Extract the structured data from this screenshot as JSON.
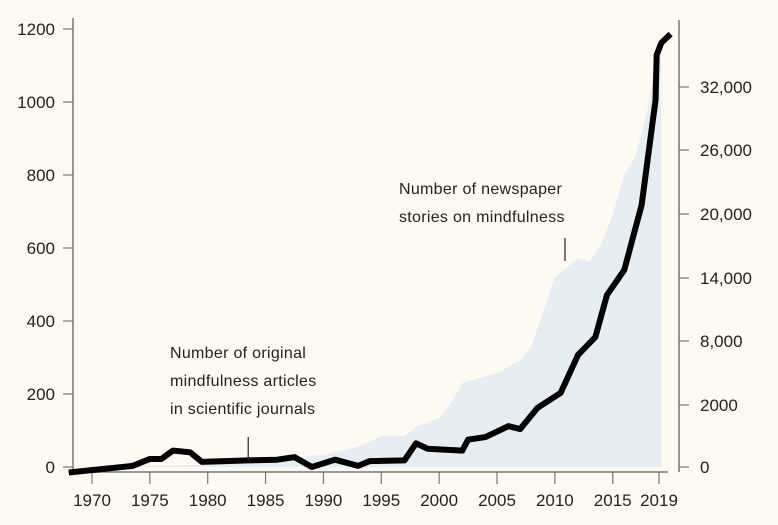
{
  "chart_data": {
    "type": "line",
    "title": "",
    "xlabel": "",
    "ylabel": "",
    "xlim": [
      1968,
      2020
    ],
    "ylim_left": [
      0,
      1200
    ],
    "x_ticks": [
      1970,
      1975,
      1980,
      1985,
      1990,
      1995,
      2000,
      2005,
      2010,
      2015,
      2019
    ],
    "left_ticks": [
      0,
      200,
      400,
      600,
      800,
      1000,
      1200
    ],
    "right_ticks": [
      {
        "value": 0,
        "label": "0"
      },
      {
        "value": 2000,
        "label": "2000"
      },
      {
        "value": 8000,
        "label": "8,000"
      },
      {
        "value": 14000,
        "label": "14,000"
      },
      {
        "value": 20000,
        "label": "20,000"
      },
      {
        "value": 26000,
        "label": "26,000"
      },
      {
        "value": 32000,
        "label": "32,000"
      }
    ],
    "grid": false,
    "colors": {
      "background": "#fdfaf2",
      "line": "#000000",
      "area": "#e6edf3",
      "axis": "#777777"
    },
    "series": [
      {
        "name": "Number of original mindfulness articles in scientific journals",
        "axis": "left",
        "style": "line",
        "x": [
          1968,
          1973.5,
          1975,
          1976,
          1977,
          1978.5,
          1979.5,
          1983.5,
          1986,
          1987.5,
          1989,
          1991,
          1993,
          1994,
          1997,
          1998,
          1999,
          2002,
          2002.5,
          2004,
          2006,
          2007,
          2008.5,
          2010.5,
          2012,
          2013.5,
          2014.5,
          2016,
          2017.5,
          2018.7,
          2018.8,
          2019.2,
          2020
        ],
        "values": [
          -15,
          3,
          22,
          22,
          45,
          40,
          14,
          18,
          20,
          27,
          0,
          20,
          3,
          16,
          18,
          65,
          50,
          45,
          75,
          82,
          112,
          104,
          162,
          203,
          307,
          356,
          471,
          540,
          718,
          1005,
          1129,
          1162,
          1186
        ]
      },
      {
        "name": "Number of newspaper stories on mindfulness",
        "axis": "right",
        "style": "area",
        "x": [
          1968,
          1980,
          1990,
          1993,
          1995,
          1997,
          1998,
          2000,
          2001,
          2002,
          2005,
          2007,
          2008,
          2010,
          2012,
          2013,
          2014,
          2015,
          2016,
          2017,
          2018,
          2019,
          2019.2
        ],
        "values": [
          0,
          65,
          390,
          650,
          1000,
          1000,
          1300,
          1580,
          2090,
          4070,
          5000,
          6200,
          7600,
          14000,
          15900,
          15500,
          17100,
          19900,
          23700,
          25500,
          29800,
          36000,
          37000
        ]
      }
    ],
    "annotations": [
      {
        "lines": [
          "Number of original",
          "mindfulness articles",
          "in scientific journals"
        ],
        "x": 1983.5
      },
      {
        "lines": [
          "Number of newspaper",
          "stories on mindfulness"
        ],
        "x": 2012
      }
    ]
  }
}
